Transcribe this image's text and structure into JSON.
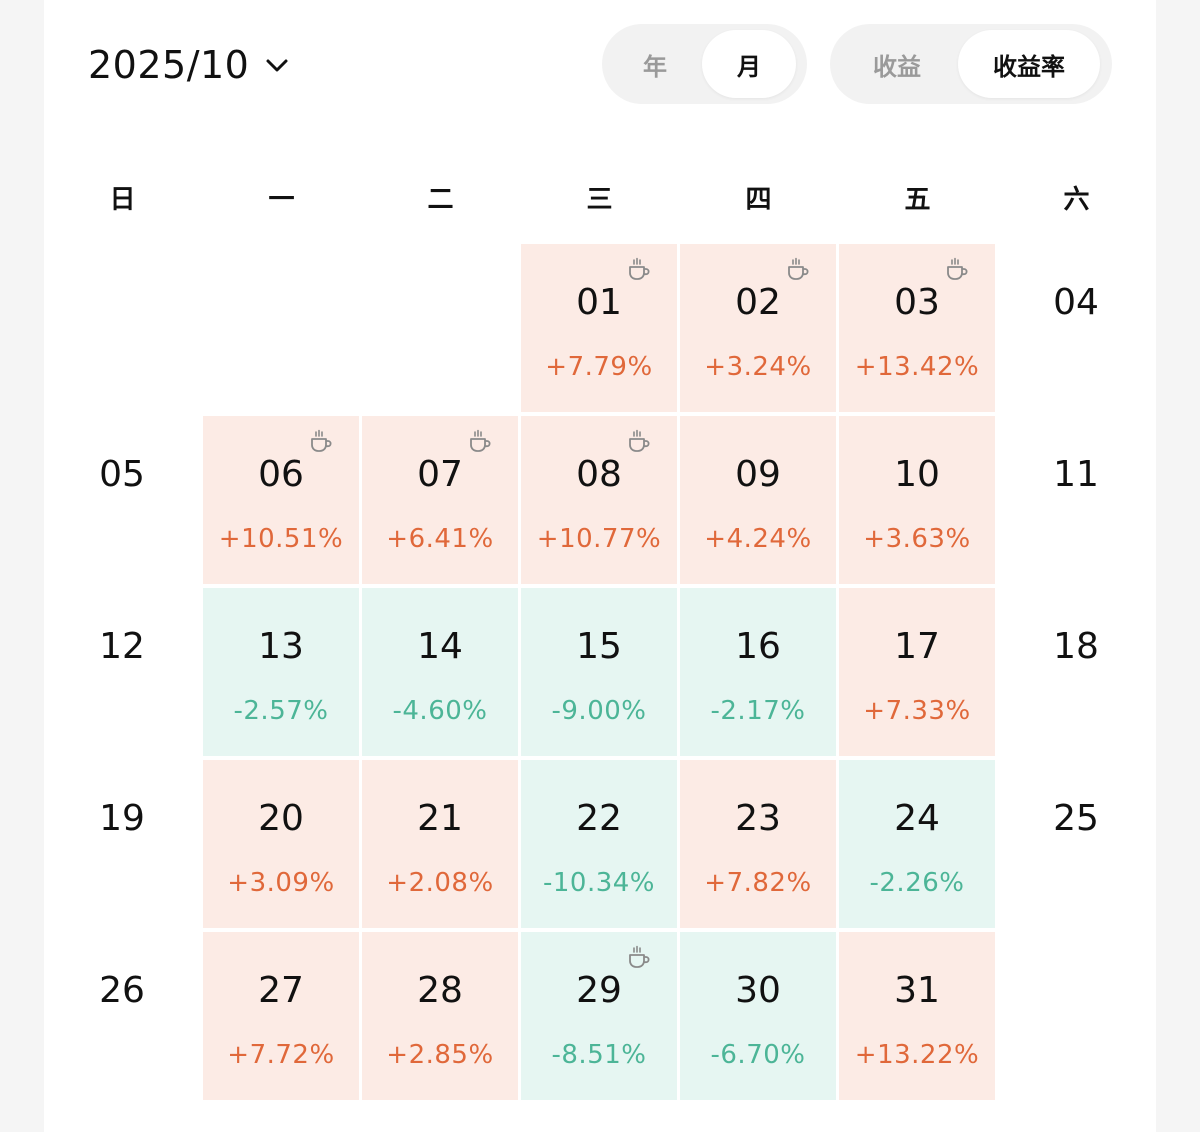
{
  "header": {
    "month": "2025/10",
    "period_toggle": {
      "options": [
        "年",
        "月"
      ],
      "selected": "月"
    },
    "metric_toggle": {
      "options": [
        "收益",
        "收益率"
      ],
      "selected": "收益率"
    }
  },
  "weekdays": [
    "日",
    "一",
    "二",
    "三",
    "四",
    "五",
    "六"
  ],
  "colors": {
    "gain_bg": "#fcebe5",
    "gain_text": "#e0683a",
    "loss_bg": "#e6f6f2",
    "loss_text": "#4cb597"
  },
  "icons": {
    "holiday_marker": "coffee-cup-icon",
    "month_dropdown": "chevron-down-icon"
  },
  "days": [
    {
      "day": "01",
      "pct": "+7.79%",
      "trend": "up",
      "cup": true
    },
    {
      "day": "02",
      "pct": "+3.24%",
      "trend": "up",
      "cup": true
    },
    {
      "day": "03",
      "pct": "+13.42%",
      "trend": "up",
      "cup": true
    },
    {
      "day": "04",
      "pct": "",
      "trend": "none",
      "cup": false
    },
    {
      "day": "05",
      "pct": "",
      "trend": "none",
      "cup": false
    },
    {
      "day": "06",
      "pct": "+10.51%",
      "trend": "up",
      "cup": true
    },
    {
      "day": "07",
      "pct": "+6.41%",
      "trend": "up",
      "cup": true
    },
    {
      "day": "08",
      "pct": "+10.77%",
      "trend": "up",
      "cup": true
    },
    {
      "day": "09",
      "pct": "+4.24%",
      "trend": "up",
      "cup": false
    },
    {
      "day": "10",
      "pct": "+3.63%",
      "trend": "up",
      "cup": false
    },
    {
      "day": "11",
      "pct": "",
      "trend": "none",
      "cup": false
    },
    {
      "day": "12",
      "pct": "",
      "trend": "none",
      "cup": false
    },
    {
      "day": "13",
      "pct": "-2.57%",
      "trend": "down",
      "cup": false
    },
    {
      "day": "14",
      "pct": "-4.60%",
      "trend": "down",
      "cup": false
    },
    {
      "day": "15",
      "pct": "-9.00%",
      "trend": "down",
      "cup": false
    },
    {
      "day": "16",
      "pct": "-2.17%",
      "trend": "down",
      "cup": false
    },
    {
      "day": "17",
      "pct": "+7.33%",
      "trend": "up",
      "cup": false
    },
    {
      "day": "18",
      "pct": "",
      "trend": "none",
      "cup": false
    },
    {
      "day": "19",
      "pct": "",
      "trend": "none",
      "cup": false
    },
    {
      "day": "20",
      "pct": "+3.09%",
      "trend": "up",
      "cup": false
    },
    {
      "day": "21",
      "pct": "+2.08%",
      "trend": "up",
      "cup": false
    },
    {
      "day": "22",
      "pct": "-10.34%",
      "trend": "down",
      "cup": false
    },
    {
      "day": "23",
      "pct": "+7.82%",
      "trend": "up",
      "cup": false
    },
    {
      "day": "24",
      "pct": "-2.26%",
      "trend": "down",
      "cup": false
    },
    {
      "day": "25",
      "pct": "",
      "trend": "none",
      "cup": false
    },
    {
      "day": "26",
      "pct": "",
      "trend": "none",
      "cup": false
    },
    {
      "day": "27",
      "pct": "+7.72%",
      "trend": "up",
      "cup": false
    },
    {
      "day": "28",
      "pct": "+2.85%",
      "trend": "up",
      "cup": false
    },
    {
      "day": "29",
      "pct": "-8.51%",
      "trend": "down",
      "cup": true
    },
    {
      "day": "30",
      "pct": "-6.70%",
      "trend": "down",
      "cup": false
    },
    {
      "day": "31",
      "pct": "+13.22%",
      "trend": "up",
      "cup": false
    }
  ]
}
